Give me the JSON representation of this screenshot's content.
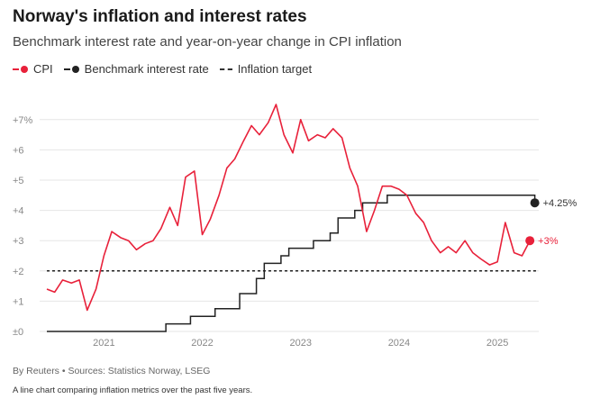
{
  "header": {
    "title": "Norway's inflation and interest rates",
    "subtitle": "Benchmark interest rate and year-on-year change in CPI inflation"
  },
  "legend": {
    "cpi": "CPI",
    "rate": "Benchmark interest rate",
    "target": "Inflation target"
  },
  "colors": {
    "cpi": "#e8213a",
    "rate": "#222222",
    "target": "#222222",
    "grid": "#e6e6e6"
  },
  "footer": {
    "source": "By Reuters • Sources: Statistics Norway, LSEG",
    "caption": "A line chart comparing inflation metrics over the past five years."
  },
  "chart_data": {
    "type": "line",
    "title": "Norway's inflation and interest rates",
    "subtitle": "Benchmark interest rate and year-on-year change in CPI inflation",
    "xlabel": "",
    "ylabel": "",
    "x_range": [
      2020.42,
      2025.42
    ],
    "ylim": [
      0,
      7.5
    ],
    "y_ticks": [
      {
        "value": 0,
        "label": "±0"
      },
      {
        "value": 1,
        "label": "+1"
      },
      {
        "value": 2,
        "label": "+2"
      },
      {
        "value": 3,
        "label": "+3"
      },
      {
        "value": 4,
        "label": "+4"
      },
      {
        "value": 5,
        "label": "+5"
      },
      {
        "value": 6,
        "label": "+6"
      },
      {
        "value": 7,
        "label": "+7%"
      }
    ],
    "x_ticks": [
      {
        "value": 2021.0,
        "label": "2021"
      },
      {
        "value": 2022.0,
        "label": "2022"
      },
      {
        "value": 2023.0,
        "label": "2023"
      },
      {
        "value": 2024.0,
        "label": "2024"
      },
      {
        "value": 2025.0,
        "label": "2025"
      }
    ],
    "target": {
      "name": "Inflation target",
      "value": 2,
      "x_range": [
        2020.42,
        2025.42
      ]
    },
    "series": [
      {
        "name": "CPI",
        "style": "line",
        "end_label": "+3%",
        "points": [
          [
            2020.42,
            1.4
          ],
          [
            2020.5,
            1.3
          ],
          [
            2020.58,
            1.7
          ],
          [
            2020.67,
            1.6
          ],
          [
            2020.75,
            1.7
          ],
          [
            2020.83,
            0.7
          ],
          [
            2020.92,
            1.4
          ],
          [
            2021.0,
            2.5
          ],
          [
            2021.08,
            3.3
          ],
          [
            2021.17,
            3.1
          ],
          [
            2021.25,
            3.0
          ],
          [
            2021.33,
            2.7
          ],
          [
            2021.42,
            2.9
          ],
          [
            2021.5,
            3.0
          ],
          [
            2021.58,
            3.4
          ],
          [
            2021.67,
            4.1
          ],
          [
            2021.75,
            3.5
          ],
          [
            2021.83,
            5.1
          ],
          [
            2021.92,
            5.3
          ],
          [
            2022.0,
            3.2
          ],
          [
            2022.08,
            3.7
          ],
          [
            2022.17,
            4.5
          ],
          [
            2022.25,
            5.4
          ],
          [
            2022.33,
            5.7
          ],
          [
            2022.42,
            6.3
          ],
          [
            2022.5,
            6.8
          ],
          [
            2022.58,
            6.5
          ],
          [
            2022.67,
            6.9
          ],
          [
            2022.75,
            7.5
          ],
          [
            2022.83,
            6.5
          ],
          [
            2022.92,
            5.9
          ],
          [
            2023.0,
            7.0
          ],
          [
            2023.08,
            6.3
          ],
          [
            2023.17,
            6.5
          ],
          [
            2023.25,
            6.4
          ],
          [
            2023.33,
            6.7
          ],
          [
            2023.42,
            6.4
          ],
          [
            2023.5,
            5.4
          ],
          [
            2023.58,
            4.8
          ],
          [
            2023.67,
            3.3
          ],
          [
            2023.75,
            4.0
          ],
          [
            2023.83,
            4.8
          ],
          [
            2023.92,
            4.8
          ],
          [
            2024.0,
            4.7
          ],
          [
            2024.08,
            4.5
          ],
          [
            2024.17,
            3.9
          ],
          [
            2024.25,
            3.6
          ],
          [
            2024.33,
            3.0
          ],
          [
            2024.42,
            2.6
          ],
          [
            2024.5,
            2.8
          ],
          [
            2024.58,
            2.6
          ],
          [
            2024.67,
            3.0
          ],
          [
            2024.75,
            2.6
          ],
          [
            2024.83,
            2.4
          ],
          [
            2024.92,
            2.2
          ],
          [
            2025.0,
            2.3
          ],
          [
            2025.08,
            3.6
          ],
          [
            2025.17,
            2.6
          ],
          [
            2025.25,
            2.5
          ],
          [
            2025.33,
            3.0
          ]
        ]
      },
      {
        "name": "Benchmark interest rate",
        "style": "step",
        "end_label": "+4.25%",
        "points": [
          [
            2020.42,
            0.0
          ],
          [
            2021.63,
            0.25
          ],
          [
            2021.88,
            0.5
          ],
          [
            2022.13,
            0.75
          ],
          [
            2022.38,
            1.25
          ],
          [
            2022.55,
            1.75
          ],
          [
            2022.63,
            2.25
          ],
          [
            2022.8,
            2.5
          ],
          [
            2022.88,
            2.75
          ],
          [
            2023.13,
            3.0
          ],
          [
            2023.3,
            3.25
          ],
          [
            2023.38,
            3.75
          ],
          [
            2023.55,
            4.0
          ],
          [
            2023.63,
            4.25
          ],
          [
            2023.88,
            4.5
          ],
          [
            2025.38,
            4.25
          ]
        ]
      }
    ]
  }
}
